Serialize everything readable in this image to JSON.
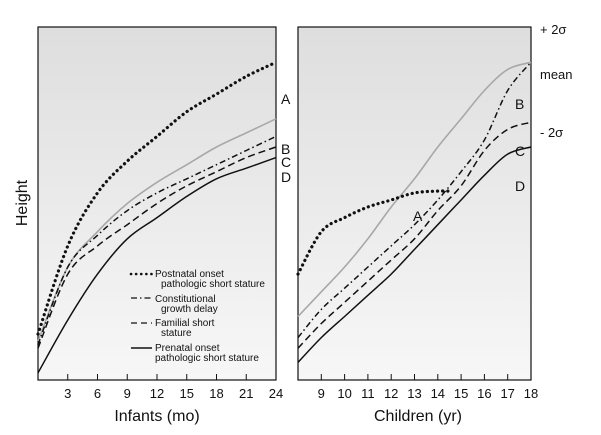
{
  "chart_data": [
    {
      "type": "line",
      "panel": "left",
      "xlabel": "Infants (mo)",
      "ylabel": "Height",
      "xlim": [
        0,
        24
      ],
      "ylim": [
        0,
        100
      ],
      "x_ticks": [
        3,
        6,
        9,
        12,
        15,
        18,
        21,
        24
      ],
      "series": [
        {
          "name": "Postnatal onset pathologic short stature",
          "label": "A",
          "style": "dotted",
          "color": "#111111",
          "points": [
            [
              0,
              13
            ],
            [
              3,
              38
            ],
            [
              6,
              53
            ],
            [
              9,
              62
            ],
            [
              12,
              69
            ],
            [
              15,
              76
            ],
            [
              18,
              81
            ],
            [
              21,
              86
            ],
            [
              24,
              90
            ]
          ]
        },
        {
          "name": "Normal (mean)",
          "label": "B",
          "style": "solid",
          "color": "#a8a8a8",
          "points": [
            [
              0,
              11
            ],
            [
              3,
              32
            ],
            [
              6,
              42
            ],
            [
              9,
              50
            ],
            [
              12,
              56
            ],
            [
              15,
              61
            ],
            [
              18,
              66
            ],
            [
              21,
              70
            ],
            [
              24,
              74
            ]
          ]
        },
        {
          "name": "Constitutional growth delay",
          "label": "C",
          "style": "dashdot",
          "color": "#111111",
          "points": [
            [
              0,
              10
            ],
            [
              3,
              32
            ],
            [
              6,
              41
            ],
            [
              9,
              48
            ],
            [
              12,
              53
            ],
            [
              15,
              57
            ],
            [
              18,
              61
            ],
            [
              21,
              65
            ],
            [
              24,
              69
            ]
          ]
        },
        {
          "name": "Familial short stature",
          "label": "D",
          "style": "dashed",
          "color": "#111111",
          "points": [
            [
              0,
              9
            ],
            [
              3,
              30
            ],
            [
              6,
              38
            ],
            [
              9,
              44
            ],
            [
              12,
              50
            ],
            [
              15,
              55
            ],
            [
              18,
              59
            ],
            [
              21,
              63
            ],
            [
              24,
              66
            ]
          ]
        },
        {
          "name": "Prenatal onset pathologic short stature",
          "label": "",
          "style": "solid",
          "color": "#111111",
          "points": [
            [
              0,
              2
            ],
            [
              3,
              17
            ],
            [
              6,
              30
            ],
            [
              9,
              40
            ],
            [
              12,
              46
            ],
            [
              15,
              52
            ],
            [
              18,
              57
            ],
            [
              21,
              60
            ],
            [
              24,
              63
            ]
          ]
        }
      ],
      "curve_labels": [
        "A",
        "B",
        "C",
        "D"
      ],
      "legend": [
        {
          "text": "Postnatal onset pathologic short stature",
          "lines": [
            "Postnatal onset",
            "pathologic short stature"
          ],
          "style": "dotted"
        },
        {
          "text": "Constitutional growth delay",
          "lines": [
            "Constitutional",
            "growth delay"
          ],
          "style": "dashdot"
        },
        {
          "text": "Familial short stature",
          "lines": [
            "Familial short",
            "stature"
          ],
          "style": "dashed"
        },
        {
          "text": "Prenatal onset pathologic short stature",
          "lines": [
            "Prenatal onset",
            "pathologic short stature"
          ],
          "style": "solid"
        }
      ],
      "legend_position": "bottom-center"
    },
    {
      "type": "line",
      "panel": "right",
      "xlabel": "Children (yr)",
      "xlim": [
        8,
        18
      ],
      "ylim": [
        0,
        100
      ],
      "x_ticks": [
        9,
        10,
        11,
        12,
        13,
        14,
        15,
        16,
        17,
        18
      ],
      "series": [
        {
          "name": "Postnatal onset pathologic short stature",
          "label": "A",
          "style": "dotted",
          "color": "#111111",
          "points": [
            [
              8,
              30
            ],
            [
              9,
              42
            ],
            [
              10,
              46
            ],
            [
              11,
              49
            ],
            [
              12,
              51
            ],
            [
              13,
              53
            ],
            [
              14,
              53.5
            ],
            [
              14.6,
              53.5
            ]
          ]
        },
        {
          "name": "Normal (mean)",
          "label": "",
          "style": "solid",
          "color": "#a8a8a8",
          "points": [
            [
              8,
              18
            ],
            [
              9,
              25
            ],
            [
              10,
              32
            ],
            [
              11,
              40
            ],
            [
              12,
              49
            ],
            [
              13,
              57
            ],
            [
              14,
              66
            ],
            [
              15,
              74
            ],
            [
              16,
              82
            ],
            [
              17,
              88
            ],
            [
              18,
              90
            ]
          ]
        },
        {
          "name": "Constitutional growth delay",
          "label": "B",
          "style": "dashdot",
          "color": "#111111",
          "points": [
            [
              8,
              12
            ],
            [
              9,
              20
            ],
            [
              10,
              26
            ],
            [
              11,
              32
            ],
            [
              12,
              38
            ],
            [
              13,
              44
            ],
            [
              14,
              51
            ],
            [
              15,
              59
            ],
            [
              16,
              68
            ],
            [
              17,
              82
            ],
            [
              18,
              90
            ]
          ]
        },
        {
          "name": "Familial short stature",
          "label": "C",
          "style": "dashed",
          "color": "#111111",
          "points": [
            [
              8,
              9
            ],
            [
              9,
              16
            ],
            [
              10,
              22
            ],
            [
              11,
              28
            ],
            [
              12,
              34
            ],
            [
              13,
              40
            ],
            [
              14,
              48
            ],
            [
              15,
              55
            ],
            [
              16,
              65
            ],
            [
              17,
              71
            ],
            [
              18,
              73
            ]
          ]
        },
        {
          "name": "Prenatal onset pathologic short stature",
          "label": "D",
          "style": "solid",
          "color": "#111111",
          "points": [
            [
              8,
              5
            ],
            [
              9,
              12
            ],
            [
              10,
              18
            ],
            [
              11,
              24
            ],
            [
              12,
              30
            ],
            [
              13,
              37
            ],
            [
              14,
              44
            ],
            [
              15,
              51
            ],
            [
              16,
              58
            ],
            [
              17,
              64
            ],
            [
              18,
              66
            ]
          ]
        }
      ],
      "curve_labels": [
        "A",
        "B",
        "C",
        "D"
      ],
      "sd_labels": {
        "top": "+ 2σ",
        "mean": "mean",
        "bottom": "- 2σ"
      }
    }
  ]
}
